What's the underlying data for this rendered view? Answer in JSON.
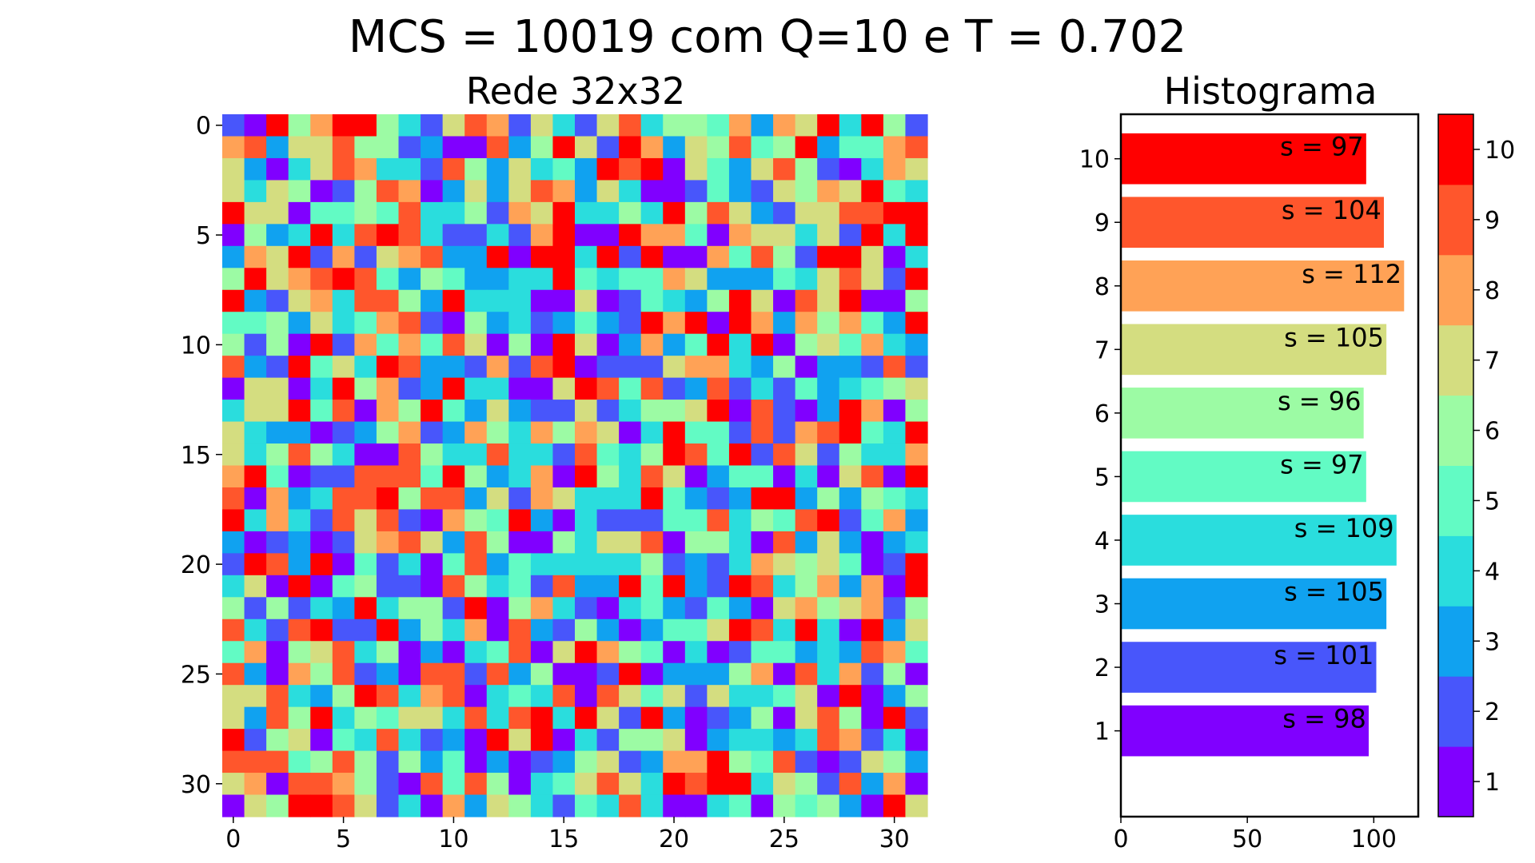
{
  "title": "MCS = 10019 com Q=10 e T = 0.702",
  "chart_data": [
    {
      "type": "heatmap",
      "title": "Rede 32x32",
      "grid_size": [
        32,
        32
      ],
      "x_ticks": [
        0,
        5,
        10,
        15,
        20,
        25,
        30
      ],
      "y_ticks": [
        0,
        5,
        10,
        15,
        20,
        25,
        30
      ],
      "xlim": [
        -0.5,
        31.5
      ],
      "ylim": [
        31.5,
        -0.5
      ],
      "values_note": "32x32 random spin lattice with states 1-10",
      "colormap": "rainbow",
      "seed": 10019
    },
    {
      "type": "bar",
      "orientation": "horizontal",
      "title": "Histograma",
      "categories": [
        1,
        2,
        3,
        4,
        5,
        6,
        7,
        8,
        9,
        10
      ],
      "values": [
        98,
        101,
        105,
        109,
        97,
        96,
        105,
        112,
        104,
        97
      ],
      "labels": [
        "s = 98",
        "s = 101",
        "s = 105",
        "s = 109",
        "s = 97",
        "s = 96",
        "s = 105",
        "s = 112",
        "s = 104",
        "s = 97"
      ],
      "x_ticks": [
        0,
        50,
        100
      ],
      "xlim": [
        0,
        117.6
      ],
      "colors": [
        "#8000ff",
        "#4856fb",
        "#10a2f0",
        "#2adddd",
        "#62fbc4",
        "#9cfba4",
        "#d4dd80",
        "#ffa256",
        "#ff562c",
        "#ff0000"
      ]
    },
    {
      "type": "colorbar",
      "ticks": [
        1,
        2,
        3,
        4,
        5,
        6,
        7,
        8,
        9,
        10
      ],
      "range": [
        0.5,
        10.5
      ],
      "colors": [
        "#8000ff",
        "#4856fb",
        "#10a2f0",
        "#2adddd",
        "#62fbc4",
        "#9cfba4",
        "#d4dd80",
        "#ffa256",
        "#ff562c",
        "#ff0000"
      ]
    }
  ]
}
